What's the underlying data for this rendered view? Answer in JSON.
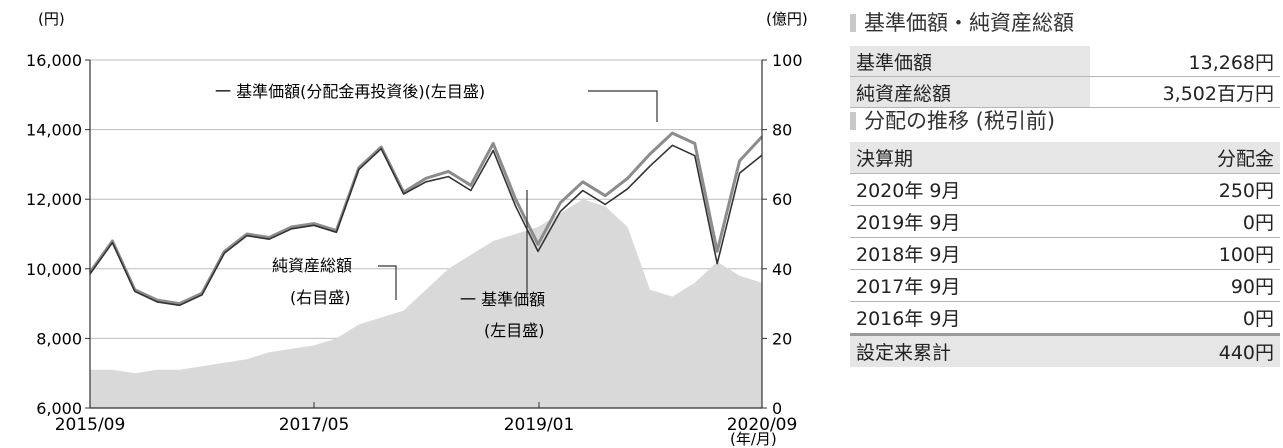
{
  "chart": {
    "left_unit": "(円)",
    "right_unit": "(億円)",
    "x_unit": "(年/月)",
    "legend_nav_adj": "一 基準価額(分配金再投資後)(左目盛)",
    "annotation_assets": [
      "純資産総額",
      "(右目盛)"
    ],
    "annotation_nav": [
      "一 基準価額",
      "(左目盛)"
    ]
  },
  "chart_data": {
    "type": "line",
    "x_tick_labels": [
      "2015/09",
      "2017/05",
      "2019/01",
      "2020/09"
    ],
    "y_left_ticks": [
      "6,000",
      "8,000",
      "10,000",
      "12,000",
      "14,000",
      "16,000"
    ],
    "y_right_ticks": [
      "0",
      "20",
      "40",
      "60",
      "80",
      "100"
    ],
    "ylim_left": [
      6000,
      16000
    ],
    "ylim_right": [
      0,
      100
    ],
    "xlim": [
      "2015/09",
      "2020/09"
    ],
    "x": [
      "2015/09",
      "2015/11",
      "2016/01",
      "2016/03",
      "2016/05",
      "2016/07",
      "2016/09",
      "2016/11",
      "2017/01",
      "2017/03",
      "2017/05",
      "2017/07",
      "2017/09",
      "2017/11",
      "2018/01",
      "2018/03",
      "2018/05",
      "2018/07",
      "2018/09",
      "2018/11",
      "2019/01",
      "2019/03",
      "2019/05",
      "2019/07",
      "2019/09",
      "2019/11",
      "2020/01",
      "2020/03",
      "2020/05",
      "2020/07",
      "2020/09"
    ],
    "series": [
      {
        "name": "基準価額(分配金再投資後)",
        "axis": "left",
        "color": "#8c8c8c",
        "values": [
          9900,
          10800,
          9400,
          9100,
          9000,
          9300,
          10500,
          11000,
          10900,
          11200,
          11300,
          11100,
          12900,
          13500,
          12200,
          12600,
          12800,
          12400,
          13600,
          12000,
          10700,
          11900,
          12500,
          12100,
          12600,
          13300,
          13900,
          13600,
          10500,
          13100,
          13800
        ]
      },
      {
        "name": "基準価額",
        "axis": "left",
        "color": "#333333",
        "values": [
          9850,
          10750,
          9350,
          9050,
          8950,
          9250,
          10450,
          10950,
          10850,
          11150,
          11250,
          11050,
          12850,
          13450,
          12150,
          12500,
          12650,
          12250,
          13400,
          11800,
          10500,
          11650,
          12250,
          11850,
          12300,
          12950,
          13550,
          13250,
          10150,
          12750,
          13268
        ]
      },
      {
        "name": "純資産総額",
        "axis": "right",
        "color": "#d9d9d9",
        "values": [
          11,
          11,
          10,
          11,
          11,
          12,
          13,
          14,
          16,
          17,
          18,
          20,
          24,
          26,
          28,
          34,
          40,
          44,
          48,
          50,
          52,
          56,
          60,
          58,
          52,
          34,
          32,
          36,
          42,
          38,
          36
        ]
      }
    ]
  },
  "side": {
    "nav_title": "基準価額・純資産総額",
    "nav_rows": [
      {
        "label": "基準価額",
        "value": "13,268円"
      },
      {
        "label": "純資産総額",
        "value": "3,502百万円"
      }
    ],
    "dist_title": "分配の推移 (税引前)",
    "dist_header": [
      "決算期",
      "分配金"
    ],
    "dist_rows": [
      {
        "period": "2020年 9月",
        "amount": "250円"
      },
      {
        "period": "2019年 9月",
        "amount": "0円"
      },
      {
        "period": "2018年 9月",
        "amount": "100円"
      },
      {
        "period": "2017年 9月",
        "amount": "90円"
      },
      {
        "period": "2016年 9月",
        "amount": "0円"
      }
    ],
    "total": {
      "label": "設定来累計",
      "amount": "440円"
    }
  }
}
